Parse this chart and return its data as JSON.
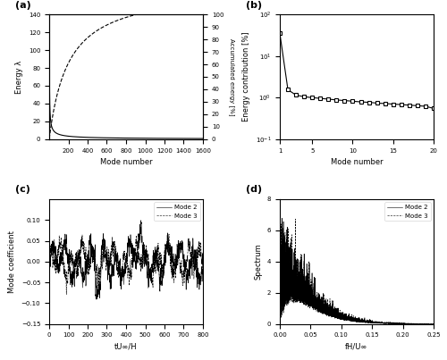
{
  "panel_a": {
    "label": "(a)",
    "xlabel": "Mode number",
    "ylabel_left": "Energy λ",
    "ylabel_right": "Accumulated energy [%]",
    "xlim": [
      0,
      1600
    ],
    "ylim_left": [
      0,
      140
    ],
    "ylim_right": [
      0,
      100
    ],
    "xticks": [
      0,
      200,
      400,
      600,
      800,
      1000,
      1200,
      1400,
      1600
    ],
    "yticks_left": [
      0,
      20,
      40,
      60,
      80,
      100,
      120,
      140
    ],
    "yticks_right": [
      0,
      10,
      20,
      30,
      40,
      50,
      60,
      70,
      80,
      90,
      100
    ]
  },
  "panel_b": {
    "label": "(b)",
    "xlabel": "Mode number",
    "ylabel": "Energy contribution [%]",
    "ylim": [
      0.1,
      100
    ],
    "xlim": [
      1,
      20
    ],
    "xticks": [
      1,
      5,
      10,
      15,
      20
    ],
    "values": [
      35.0,
      1.55,
      1.15,
      1.05,
      1.0,
      0.96,
      0.92,
      0.88,
      0.85,
      0.82,
      0.79,
      0.77,
      0.74,
      0.72,
      0.7,
      0.68,
      0.66,
      0.64,
      0.62,
      0.55
    ]
  },
  "panel_c": {
    "label": "(c)",
    "xlabel": "tU∞/H",
    "ylabel": "Mode coefficient",
    "xlim": [
      0,
      800
    ],
    "ylim": [
      -0.15,
      0.15
    ],
    "xticks": [
      0,
      100,
      200,
      300,
      400,
      500,
      600,
      700,
      800
    ],
    "yticks": [
      -0.15,
      -0.1,
      -0.05,
      0,
      0.05,
      0.1
    ],
    "legend": [
      "Mode 2",
      "Mode 3"
    ]
  },
  "panel_d": {
    "label": "(d)",
    "xlabel": "fH/U∞",
    "ylabel": "Spectrum",
    "xlim": [
      0,
      0.25
    ],
    "ylim": [
      0,
      8
    ],
    "xticks": [
      0,
      0.05,
      0.1,
      0.15,
      0.2,
      0.25
    ],
    "yticks": [
      0,
      2,
      4,
      6,
      8
    ],
    "legend": [
      "Mode 2",
      "Mode 3"
    ]
  },
  "bg_color": "#ffffff"
}
